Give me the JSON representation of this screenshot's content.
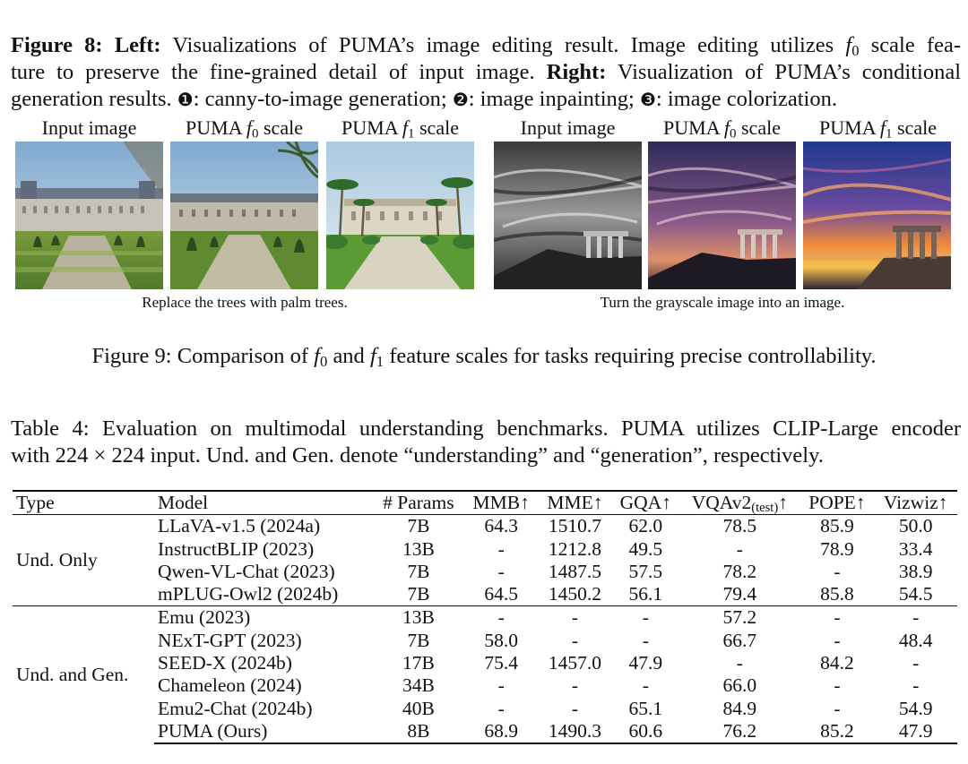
{
  "figure8": {
    "label": "Figure 8:",
    "left_label": "Left:",
    "text_a": " Visualizations of PUMA’s image editing result. Image editing utilizes ",
    "math_f": "f",
    "math_sub0": "0",
    "text_b": " scale fea-",
    "text_c": "ture to preserve the fine-grained detail of input image. ",
    "right_label": "Right:",
    "text_d": " Visualization of PUMA’s conditional",
    "text_e": "generation results. ",
    "m1": "❶",
    "t1": ": canny-to-image generation; ",
    "m2": "❷",
    "t2": ": image inpainting; ",
    "m3": "❸",
    "t3": ": image colorization."
  },
  "panels": {
    "left": {
      "labels": {
        "input": "Input image",
        "puma": "PUMA ",
        "f": "f",
        "sub0": "0",
        "sub1": "1",
        "scale": " scale"
      },
      "caption": "Replace the trees with palm trees."
    },
    "right": {
      "labels": {
        "input": "Input image",
        "puma": "PUMA ",
        "f": "f",
        "sub0": "0",
        "sub1": "1",
        "scale": " scale"
      },
      "caption": "Turn the grayscale image into an image."
    }
  },
  "figure9": {
    "a": "Figure 9: Comparison of ",
    "f": "f",
    "sub0": "0",
    "and": " and ",
    "sub1": "1",
    "b": " feature scales for tasks requiring precise controllability."
  },
  "table4": {
    "cap_l1": "Table 4: Evaluation on multimodal understanding benchmarks. PUMA utilizes CLIP-Large encoder",
    "cap_l2_a": "with 224 × 224 input. Und. and Gen. denote “understanding” and “generation”, respectively.",
    "headers": {
      "type": "Type",
      "model": "Model",
      "params": "# Params",
      "mmb": "MMB↑",
      "mme": "MME↑",
      "gqa": "GQA↑",
      "vqa": "VQAv2",
      "vqa_sub": "(test)",
      "vqa_arrow": "↑",
      "pope": "POPE↑",
      "vizwiz": "Vizwiz↑"
    },
    "groups": [
      {
        "type": "Und. Only",
        "rows": [
          {
            "model": "LLaVA-v1.5 (2024a)",
            "params": "7B",
            "mmb": "64.3",
            "mme": "1510.7",
            "gqa": "62.0",
            "vqa": "78.5",
            "pope": "85.9",
            "vizwiz": "50.0"
          },
          {
            "model": "InstructBLIP (2023)",
            "params": "13B",
            "mmb": "-",
            "mme": "1212.8",
            "gqa": "49.5",
            "vqa": "-",
            "pope": "78.9",
            "vizwiz": "33.4"
          },
          {
            "model": "Qwen-VL-Chat (2023)",
            "params": "7B",
            "mmb": "-",
            "mme": "1487.5",
            "gqa": "57.5",
            "vqa": "78.2",
            "pope": "-",
            "vizwiz": "38.9"
          },
          {
            "model": "mPLUG-Owl2 (2024b)",
            "params": "7B",
            "mmb": "64.5",
            "mme": "1450.2",
            "gqa": "56.1",
            "vqa": "79.4",
            "pope": "85.8",
            "vizwiz": "54.5"
          }
        ]
      },
      {
        "type": "Und. and Gen.",
        "rows": [
          {
            "model": "Emu (2023)",
            "params": "13B",
            "mmb": "-",
            "mme": "-",
            "gqa": "-",
            "vqa": "57.2",
            "pope": "-",
            "vizwiz": "-"
          },
          {
            "model": "NExT-GPT (2023)",
            "params": "7B",
            "mmb": "58.0",
            "mme": "-",
            "gqa": "-",
            "vqa": "66.7",
            "pope": "-",
            "vizwiz": "48.4"
          },
          {
            "model": "SEED-X (2024b)",
            "params": "17B",
            "mmb": "75.4",
            "mme": "1457.0",
            "gqa": "47.9",
            "vqa": "-",
            "pope": "84.2",
            "vizwiz": "-"
          },
          {
            "model": "Chameleon (2024)",
            "params": "34B",
            "mmb": "-",
            "mme": "-",
            "gqa": "-",
            "vqa": "66.0",
            "pope": "-",
            "vizwiz": "-"
          },
          {
            "model": "Emu2-Chat (2024b)",
            "params": "40B",
            "mmb": "-",
            "mme": "-",
            "gqa": "65.1",
            "vqa": "84.9",
            "pope": "-",
            "vizwiz": "54.9"
          },
          {
            "model": "PUMA (Ours)",
            "params": "8B",
            "mmb": "68.9",
            "mme": "1490.3",
            "gqa": "60.6",
            "vqa": "76.2",
            "pope": "85.2",
            "vizwiz": "47.9"
          }
        ]
      }
    ]
  }
}
